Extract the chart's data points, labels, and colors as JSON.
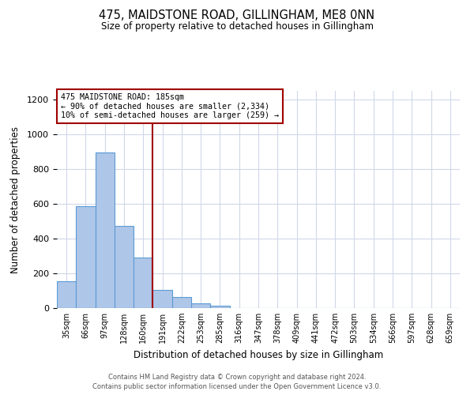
{
  "title": "475, MAIDSTONE ROAD, GILLINGHAM, ME8 0NN",
  "subtitle": "Size of property relative to detached houses in Gillingham",
  "xlabel": "Distribution of detached houses by size in Gillingham",
  "ylabel": "Number of detached properties",
  "bar_labels": [
    "35sqm",
    "66sqm",
    "97sqm",
    "128sqm",
    "160sqm",
    "191sqm",
    "222sqm",
    "253sqm",
    "285sqm",
    "316sqm",
    "347sqm",
    "378sqm",
    "409sqm",
    "441sqm",
    "472sqm",
    "503sqm",
    "534sqm",
    "566sqm",
    "597sqm",
    "628sqm",
    "659sqm"
  ],
  "bar_values": [
    155,
    585,
    895,
    475,
    290,
    105,
    65,
    28,
    14,
    0,
    0,
    0,
    0,
    0,
    0,
    0,
    0,
    0,
    0,
    0,
    0
  ],
  "bar_color": "#aec6e8",
  "bar_edge_color": "#5b9bd5",
  "vline_x": 5,
  "vline_color": "#a00000",
  "annotation_line1": "475 MAIDSTONE ROAD: 185sqm",
  "annotation_line2": "← 90% of detached houses are smaller (2,334)",
  "annotation_line3": "10% of semi-detached houses are larger (259) →",
  "annotation_box_color": "#a00000",
  "annotation_text_color": "#000000",
  "ylim": [
    0,
    1250
  ],
  "yticks": [
    0,
    200,
    400,
    600,
    800,
    1000,
    1200
  ],
  "background_color": "#ffffff",
  "grid_color": "#d0d8e8",
  "footer_line1": "Contains HM Land Registry data © Crown copyright and database right 2024.",
  "footer_line2": "Contains public sector information licensed under the Open Government Licence v3.0."
}
